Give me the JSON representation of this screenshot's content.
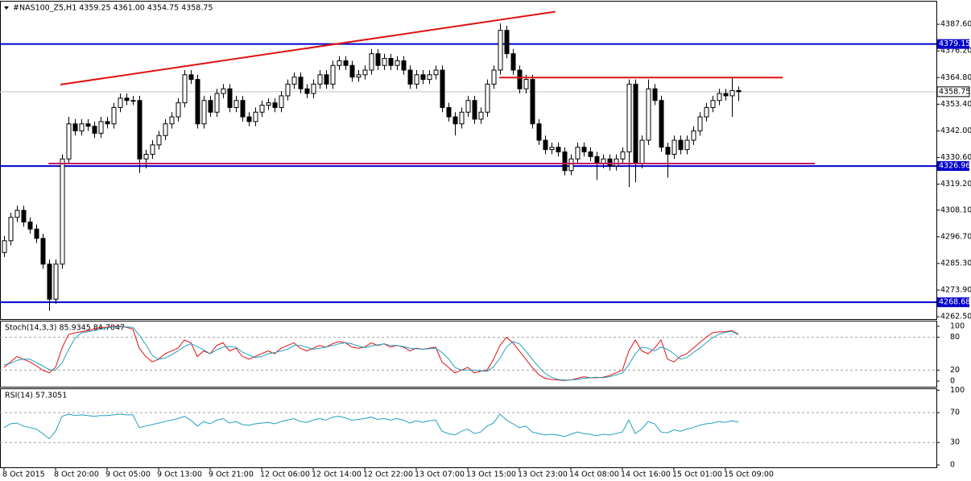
{
  "chart_data": [
    {
      "type": "candlestick",
      "title": "#NAS100_Z5,H1  4359.25 4361.00 4354.75 4358.75",
      "categories": [
        "8 Oct 2015",
        null,
        null,
        null,
        null,
        null,
        null,
        null,
        "8 Oct 20:00",
        null,
        null,
        null,
        null,
        null,
        null,
        null,
        "9 Oct 05:00",
        null,
        null,
        null,
        null,
        null,
        null,
        null,
        "9 Oct 13:00",
        null,
        null,
        null,
        null,
        null,
        null,
        null,
        "9 Oct 21:00",
        null,
        null,
        null,
        null,
        null,
        null,
        null,
        "12 Oct 06:00",
        null,
        null,
        null,
        null,
        null,
        null,
        null,
        "12 Oct 14:00",
        null,
        null,
        null,
        null,
        null,
        null,
        null,
        "12 Oct 22:00",
        null,
        null,
        null,
        null,
        null,
        null,
        null,
        "13 Oct 07:00",
        null,
        null,
        null,
        null,
        null,
        null,
        null,
        "13 Oct 15:00",
        null,
        null,
        null,
        null,
        null,
        null,
        null,
        "13 Oct 23:00",
        null,
        null,
        null,
        null,
        null,
        null,
        null,
        "14 Oct 08:00",
        null,
        null,
        null,
        null,
        null,
        null,
        null,
        "14 Oct 16:00",
        null,
        null,
        null,
        null,
        null,
        null,
        null,
        "15 Oct 01:00",
        null,
        null,
        null,
        null,
        null,
        null,
        null,
        "15 Oct 09:00",
        null,
        null
      ],
      "open": [
        4290,
        4295,
        4305,
        4308,
        4303,
        4300,
        4296,
        4285,
        4270,
        4285,
        4330,
        4345,
        4342,
        4345,
        4344,
        4341,
        4346,
        4345,
        4352,
        4356,
        4355,
        4355,
        4330,
        4332,
        4336,
        4340,
        4345,
        4348,
        4354,
        4366,
        4364,
        4345,
        4355,
        4350,
        4358,
        4360,
        4352,
        4355,
        4348,
        4346,
        4350,
        4353,
        4354,
        4352,
        4357,
        4362,
        4365,
        4360,
        4358,
        4362,
        4366,
        4362,
        4370,
        4372,
        4370,
        4365,
        4366,
        4368,
        4375,
        4370,
        4373,
        4370,
        4372,
        4368,
        4362,
        4366,
        4364,
        4366,
        4368,
        4352,
        4348,
        4345,
        4350,
        4355,
        4347,
        4350,
        4362,
        4368,
        4385,
        4375,
        4368,
        4360,
        4364,
        4345,
        4338,
        4334,
        4335,
        4333,
        4325,
        4330,
        4335,
        4333,
        4331,
        4328,
        4330,
        4327,
        4330,
        4333,
        4362,
        4328,
        4338,
        4360,
        4355,
        4335,
        4332,
        4338,
        4334,
        4338,
        4342,
        4348,
        4352,
        4355,
        4358,
        4357,
        4359.25
      ],
      "high": [
        4297,
        4307,
        4310,
        4310,
        4305,
        4302,
        4298,
        4287,
        4287,
        4332,
        4348,
        4347,
        4347,
        4347,
        4346,
        4348,
        4348,
        4354,
        4358,
        4358,
        4357,
        4357,
        4334,
        4338,
        4342,
        4347,
        4350,
        4356,
        4368,
        4368,
        4366,
        4357,
        4357,
        4360,
        4362,
        4362,
        4357,
        4357,
        4350,
        4352,
        4355,
        4356,
        4356,
        4359,
        4364,
        4367,
        4367,
        4362,
        4364,
        4368,
        4368,
        4372,
        4374,
        4374,
        4372,
        4368,
        4370,
        4377,
        4377,
        4375,
        4375,
        4374,
        4374,
        4370,
        4368,
        4368,
        4368,
        4370,
        4370,
        4354,
        4350,
        4352,
        4357,
        4357,
        4352,
        4364,
        4370,
        4388,
        4387,
        4377,
        4370,
        4366,
        4366,
        4347,
        4340,
        4337,
        4337,
        4335,
        4332,
        4337,
        4337,
        4335,
        4333,
        4332,
        4332,
        4332,
        4335,
        4364,
        4364,
        4340,
        4364,
        4362,
        4357,
        4337,
        4340,
        4340,
        4340,
        4344,
        4350,
        4354,
        4357,
        4360,
        4360,
        4365,
        4361
      ],
      "low": [
        4288,
        4293,
        4303,
        4301,
        4298,
        4294,
        4283,
        4265,
        4268,
        4283,
        4328,
        4340,
        4340,
        4342,
        4339,
        4339,
        4343,
        4343,
        4350,
        4353,
        4353,
        4324,
        4326,
        4330,
        4334,
        4338,
        4343,
        4346,
        4352,
        4362,
        4343,
        4343,
        4348,
        4348,
        4356,
        4350,
        4350,
        4346,
        4344,
        4344,
        4348,
        4351,
        4350,
        4350,
        4355,
        4360,
        4358,
        4356,
        4356,
        4360,
        4360,
        4360,
        4368,
        4368,
        4363,
        4363,
        4364,
        4366,
        4368,
        4368,
        4368,
        4368,
        4366,
        4360,
        4360,
        4362,
        4362,
        4364,
        4350,
        4346,
        4340,
        4343,
        4348,
        4345,
        4345,
        4348,
        4360,
        4366,
        4373,
        4366,
        4358,
        4358,
        4343,
        4336,
        4332,
        4332,
        4331,
        4323,
        4323,
        4328,
        4331,
        4329,
        4321,
        4326,
        4325,
        4325,
        4328,
        4318,
        4320,
        4326,
        4336,
        4353,
        4333,
        4322,
        4330,
        4332,
        4332,
        4336,
        4340,
        4346,
        4350,
        4353,
        4355,
        4348,
        4354.75
      ],
      "close": [
        4295,
        4305,
        4308,
        4303,
        4300,
        4296,
        4285,
        4270,
        4285,
        4330,
        4345,
        4342,
        4345,
        4344,
        4341,
        4346,
        4345,
        4352,
        4356,
        4355,
        4355,
        4330,
        4332,
        4336,
        4340,
        4345,
        4348,
        4354,
        4366,
        4364,
        4345,
        4355,
        4350,
        4358,
        4360,
        4352,
        4355,
        4348,
        4346,
        4350,
        4353,
        4354,
        4352,
        4357,
        4362,
        4365,
        4360,
        4358,
        4362,
        4366,
        4362,
        4370,
        4372,
        4370,
        4365,
        4366,
        4368,
        4375,
        4370,
        4373,
        4370,
        4372,
        4368,
        4362,
        4366,
        4364,
        4366,
        4368,
        4352,
        4348,
        4345,
        4350,
        4355,
        4347,
        4350,
        4362,
        4368,
        4385,
        4375,
        4368,
        4360,
        4364,
        4345,
        4338,
        4334,
        4335,
        4333,
        4325,
        4330,
        4335,
        4333,
        4331,
        4328,
        4330,
        4327,
        4330,
        4333,
        4362,
        4328,
        4338,
        4360,
        4355,
        4335,
        4332,
        4338,
        4334,
        4338,
        4342,
        4348,
        4352,
        4355,
        4358,
        4357,
        4359.25,
        4358.75
      ],
      "ylim": [
        4261.5,
        4397.3
      ],
      "yticks": [
        {
          "value": 4387.6,
          "label": "4387.60"
        },
        {
          "value": 4376.2,
          "label": "4376.20"
        },
        {
          "value": 4364.8,
          "label": "4364.80"
        },
        {
          "value": 4353.4,
          "label": "4353.40"
        },
        {
          "value": 4342,
          "label": "4342.00"
        },
        {
          "value": 4330.6,
          "label": "4330.60"
        },
        {
          "value": 4319.2,
          "label": "4319.20"
        },
        {
          "value": 4308.1,
          "label": "4308.10"
        },
        {
          "value": 4296.7,
          "label": "4296.70"
        },
        {
          "value": 4285.3,
          "label": "4285.30"
        },
        {
          "value": 4273.9,
          "label": "4273.90"
        },
        {
          "value": 4262.5,
          "label": "4262.50"
        }
      ],
      "levels": [
        {
          "value": 4379.15,
          "color": "#0000cc"
        },
        {
          "value": 4326.96,
          "color": "#0000cc"
        },
        {
          "value": 4268.68,
          "color": "#0000cc"
        }
      ],
      "current": {
        "value": 4358.75,
        "color": "#c0c0c0"
      },
      "trendlines": [
        {
          "x": [
            8.75,
            85.6
          ],
          "y": [
            4361.8,
            4393
          ],
          "color": "#e01010"
        },
        {
          "x": [
            76.9,
            120.9
          ],
          "y": [
            4364.8,
            4364.8
          ],
          "color": "#e01010"
        },
        {
          "x": [
            6.9,
            125.9
          ],
          "y": [
            4328,
            4328
          ],
          "color": "#c2185b"
        }
      ]
    },
    {
      "type": "line",
      "title": "Stoch(14,3,3) 85.9345 84.7047",
      "ylim": [
        -10.3,
        108.8
      ],
      "yticks": [
        100,
        80,
        20,
        0
      ],
      "levels": [
        80,
        20
      ],
      "series": [
        {
          "name": "Main",
          "color": "#e01010",
          "values": [
            25,
            35,
            45,
            40,
            35,
            28,
            20,
            15,
            25,
            60,
            85,
            88,
            90,
            92,
            95,
            98,
            98,
            100,
            100,
            98,
            95,
            60,
            45,
            35,
            40,
            50,
            55,
            60,
            75,
            70,
            45,
            55,
            50,
            65,
            70,
            55,
            60,
            45,
            40,
            45,
            50,
            55,
            50,
            60,
            65,
            70,
            60,
            55,
            60,
            65,
            62,
            68,
            72,
            70,
            62,
            60,
            62,
            70,
            65,
            68,
            62,
            65,
            62,
            55,
            60,
            58,
            60,
            62,
            35,
            25,
            15,
            20,
            25,
            15,
            18,
            20,
            40,
            65,
            80,
            70,
            55,
            40,
            25,
            12,
            5,
            3,
            2,
            1,
            2,
            5,
            8,
            6,
            6,
            7,
            10,
            15,
            20,
            55,
            75,
            55,
            50,
            60,
            75,
            40,
            35,
            45,
            50,
            60,
            70,
            80,
            88,
            90,
            90,
            92,
            85.9345
          ]
        },
        {
          "name": "Signal",
          "color": "#20a0c0",
          "values": [
            30,
            32,
            38,
            40,
            40,
            34,
            28,
            21,
            20,
            33,
            57,
            78,
            88,
            90,
            92,
            95,
            97,
            99,
            99,
            99,
            98,
            84,
            67,
            47,
            40,
            42,
            48,
            55,
            63,
            68,
            63,
            57,
            50,
            57,
            62,
            63,
            62,
            53,
            48,
            43,
            45,
            50,
            52,
            55,
            58,
            65,
            65,
            62,
            58,
            60,
            62,
            65,
            68,
            70,
            68,
            64,
            61,
            64,
            66,
            68,
            65,
            65,
            63,
            60,
            59,
            58,
            59,
            60,
            52,
            41,
            25,
            20,
            20,
            20,
            19,
            18,
            26,
            42,
            62,
            72,
            68,
            55,
            40,
            26,
            14,
            7,
            3,
            2,
            2,
            3,
            5,
            6,
            7,
            6,
            8,
            11,
            15,
            30,
            50,
            62,
            60,
            55,
            62,
            58,
            50,
            40,
            43,
            52,
            60,
            70,
            79,
            86,
            89,
            91,
            84.7047
          ]
        }
      ]
    },
    {
      "type": "line",
      "title": "RSI(14) 57.3051",
      "ylim": [
        -3.2,
        101.4
      ],
      "yticks": [
        100,
        70,
        30,
        0
      ],
      "levels": [
        70,
        30
      ],
      "series": [
        {
          "name": "RSI",
          "color": "#20a0c0",
          "values": [
            50,
            55,
            56,
            52,
            50,
            48,
            42,
            35,
            45,
            65,
            68,
            66,
            67,
            66,
            65,
            66,
            66,
            67,
            68,
            67,
            67,
            50,
            52,
            54,
            56,
            58,
            60,
            62,
            65,
            60,
            52,
            58,
            55,
            60,
            62,
            56,
            58,
            54,
            53,
            55,
            56,
            57,
            55,
            58,
            60,
            62,
            58,
            57,
            60,
            62,
            60,
            64,
            65,
            63,
            60,
            61,
            62,
            64,
            61,
            62,
            60,
            62,
            60,
            56,
            59,
            57,
            59,
            60,
            45,
            42,
            40,
            45,
            48,
            42,
            44,
            52,
            56,
            68,
            60,
            55,
            50,
            52,
            44,
            42,
            40,
            41,
            40,
            38,
            41,
            44,
            42,
            41,
            39,
            41,
            40,
            42,
            44,
            60,
            42,
            48,
            58,
            55,
            44,
            43,
            47,
            45,
            48,
            50,
            53,
            55,
            56,
            58,
            57,
            59,
            57.3051
          ]
        }
      ]
    }
  ]
}
